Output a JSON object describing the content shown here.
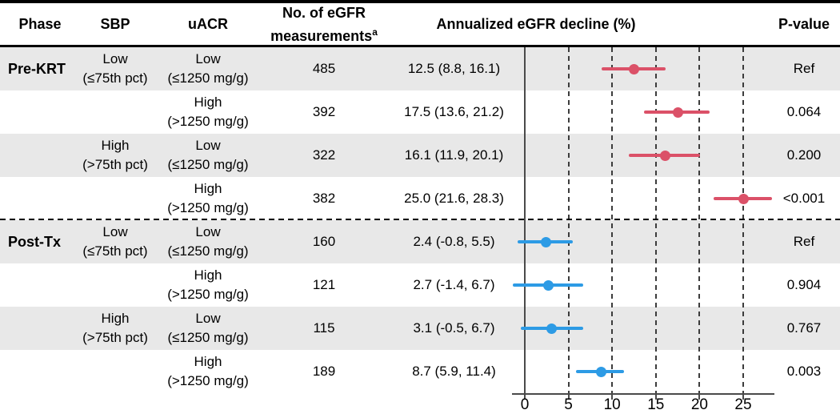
{
  "header": {
    "phase": "Phase",
    "sbp": "SBP",
    "uacr": "uACR",
    "n_line1": "No. of eGFR",
    "n_line2": "measurements",
    "n_sup": "a",
    "plot": "Annualized eGFR decline (%)",
    "pvalue": "P-value"
  },
  "colors": {
    "pre_marker": "#DB5168",
    "post_marker": "#2D9BE5",
    "stripe": "#E8E8E8"
  },
  "axis": {
    "ticks": [
      "0",
      "5",
      "10",
      "15",
      "20",
      "25"
    ],
    "tick_values": [
      0,
      5,
      10,
      15,
      20,
      25
    ]
  },
  "rows": [
    {
      "phase": "Pre-KRT",
      "sbp1": "Low",
      "sbp2": "(≤75th pct)",
      "uacr1": "Low",
      "uacr2": "(≤1250 mg/g)",
      "n": "485",
      "estimate": "12.5 (8.8, 16.1)",
      "est": 12.5,
      "lo": 8.8,
      "hi": 16.1,
      "p": "Ref",
      "group": "pre"
    },
    {
      "phase": "",
      "sbp1": "",
      "sbp2": "",
      "uacr1": "High",
      "uacr2": "(>1250 mg/g)",
      "n": "392",
      "estimate": "17.5 (13.6, 21.2)",
      "est": 17.5,
      "lo": 13.6,
      "hi": 21.2,
      "p": "0.064",
      "group": "pre"
    },
    {
      "phase": "",
      "sbp1": "High",
      "sbp2": "(>75th pct)",
      "uacr1": "Low",
      "uacr2": "(≤1250 mg/g)",
      "n": "322",
      "estimate": "16.1 (11.9, 20.1)",
      "est": 16.1,
      "lo": 11.9,
      "hi": 20.1,
      "p": "0.200",
      "group": "pre"
    },
    {
      "phase": "",
      "sbp1": "",
      "sbp2": "",
      "uacr1": "High",
      "uacr2": "(>1250 mg/g)",
      "n": "382",
      "estimate": "25.0 (21.6, 28.3)",
      "est": 25.0,
      "lo": 21.6,
      "hi": 28.3,
      "p": "<0.001",
      "group": "pre"
    },
    {
      "phase": "Post-Tx",
      "sbp1": "Low",
      "sbp2": "(≤75th pct)",
      "uacr1": "Low",
      "uacr2": "(≤1250 mg/g)",
      "n": "160",
      "estimate": "2.4 (-0.8, 5.5)",
      "est": 2.4,
      "lo": -0.8,
      "hi": 5.5,
      "p": "Ref",
      "group": "post"
    },
    {
      "phase": "",
      "sbp1": "",
      "sbp2": "",
      "uacr1": "High",
      "uacr2": "(>1250 mg/g)",
      "n": "121",
      "estimate": "2.7 (-1.4, 6.7)",
      "est": 2.7,
      "lo": -1.4,
      "hi": 6.7,
      "p": "0.904",
      "group": "post"
    },
    {
      "phase": "",
      "sbp1": "High",
      "sbp2": "(>75th pct)",
      "uacr1": "Low",
      "uacr2": "(≤1250 mg/g)",
      "n": "115",
      "estimate": "3.1 (-0.5, 6.7)",
      "est": 3.1,
      "lo": -0.5,
      "hi": 6.7,
      "p": "0.767",
      "group": "post"
    },
    {
      "phase": "",
      "sbp1": "",
      "sbp2": "",
      "uacr1": "High",
      "uacr2": "(>1250 mg/g)",
      "n": "189",
      "estimate": "8.7 (5.9, 11.4)",
      "est": 8.7,
      "lo": 5.9,
      "hi": 11.4,
      "p": "0.003",
      "group": "post"
    }
  ],
  "chart_data": {
    "type": "scatter",
    "subtype": "forest_plot",
    "title": "Annualized eGFR decline (%)",
    "xlabel": "Annualized eGFR decline (%)",
    "xlim": [
      -1.5,
      28.8
    ],
    "xticks": [
      0,
      5,
      10,
      15,
      20,
      25
    ],
    "grid": "dashed vertical gridlines at ticks 5-25; solid vertical reference line at 0",
    "legend_position": "none",
    "series": [
      {
        "name": "Pre-KRT",
        "color": "#DB5168",
        "points": [
          {
            "sbp": "Low (≤75th pct)",
            "uacr": "Low (≤1250 mg/g)",
            "n_measurements": 485,
            "estimate": 12.5,
            "ci_low": 8.8,
            "ci_high": 16.1,
            "p_value": "Ref"
          },
          {
            "sbp": "Low (≤75th pct)",
            "uacr": "High (>1250 mg/g)",
            "n_measurements": 392,
            "estimate": 17.5,
            "ci_low": 13.6,
            "ci_high": 21.2,
            "p_value": "0.064"
          },
          {
            "sbp": "High (>75th pct)",
            "uacr": "Low (≤1250 mg/g)",
            "n_measurements": 322,
            "estimate": 16.1,
            "ci_low": 11.9,
            "ci_high": 20.1,
            "p_value": "0.200"
          },
          {
            "sbp": "High (>75th pct)",
            "uacr": "High (>1250 mg/g)",
            "n_measurements": 382,
            "estimate": 25.0,
            "ci_low": 21.6,
            "ci_high": 28.3,
            "p_value": "<0.001"
          }
        ]
      },
      {
        "name": "Post-Tx",
        "color": "#2D9BE5",
        "points": [
          {
            "sbp": "Low (≤75th pct)",
            "uacr": "Low (≤1250 mg/g)",
            "n_measurements": 160,
            "estimate": 2.4,
            "ci_low": -0.8,
            "ci_high": 5.5,
            "p_value": "Ref"
          },
          {
            "sbp": "Low (≤75th pct)",
            "uacr": "High (>1250 mg/g)",
            "n_measurements": 121,
            "estimate": 2.7,
            "ci_low": -1.4,
            "ci_high": 6.7,
            "p_value": "0.904"
          },
          {
            "sbp": "High (>75th pct)",
            "uacr": "Low (≤1250 mg/g)",
            "n_measurements": 115,
            "estimate": 3.1,
            "ci_low": -0.5,
            "ci_high": 6.7,
            "p_value": "0.767"
          },
          {
            "sbp": "High (>75th pct)",
            "uacr": "High (>1250 mg/g)",
            "n_measurements": 189,
            "estimate": 8.7,
            "ci_low": 5.9,
            "ci_high": 11.4,
            "p_value": "0.003"
          }
        ]
      }
    ]
  }
}
